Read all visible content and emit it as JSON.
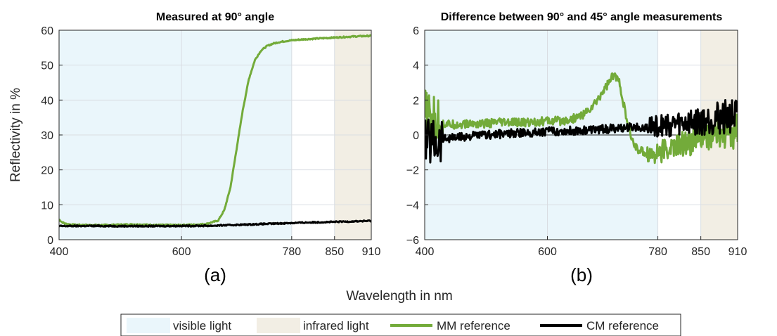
{
  "figure": {
    "ylabel": "Reflectivity in %",
    "xlabel": "Wavelength in nm",
    "legend": [
      {
        "label": "visible light",
        "kind": "patch",
        "color": "#eaf6fb"
      },
      {
        "label": "infrared light",
        "kind": "patch",
        "color": "#f2eee4"
      },
      {
        "label": "MM reference",
        "kind": "line",
        "color": "#73ab3a"
      },
      {
        "label": "CM reference",
        "kind": "line",
        "color": "#000000"
      }
    ]
  },
  "chart_data": [
    {
      "type": "line",
      "title": "Measured at 90° angle",
      "panel_label": "(a)",
      "xlabel": "",
      "ylabel": "Reflectivity in %",
      "xlim": [
        400,
        910
      ],
      "ylim": [
        0,
        60
      ],
      "xticks": [
        400,
        600,
        780,
        850,
        910
      ],
      "yticks": [
        0,
        10,
        20,
        30,
        40,
        50,
        60
      ],
      "grid": true,
      "shaded_regions": [
        {
          "name": "visible light",
          "x": [
            400,
            780
          ],
          "color": "#eaf6fb"
        },
        {
          "name": "infrared light",
          "x": [
            850,
            910
          ],
          "color": "#f2eee4"
        }
      ],
      "series": [
        {
          "name": "MM reference",
          "color": "#73ab3a",
          "x": [
            400,
            405,
            410,
            420,
            440,
            460,
            480,
            500,
            520,
            540,
            560,
            580,
            600,
            620,
            640,
            660,
            670,
            680,
            690,
            700,
            710,
            720,
            730,
            740,
            750,
            760,
            770,
            780,
            800,
            820,
            850,
            880,
            910
          ],
          "y": [
            5.8,
            5.0,
            4.6,
            4.3,
            4.2,
            4.2,
            4.2,
            4.3,
            4.4,
            4.3,
            4.2,
            4.2,
            4.2,
            4.3,
            4.5,
            5.5,
            8.5,
            15,
            26,
            37,
            46,
            51.5,
            54.2,
            55.5,
            56.2,
            56.6,
            56.9,
            57.1,
            57.4,
            57.6,
            57.9,
            58.2,
            58.4
          ]
        },
        {
          "name": "CM reference",
          "color": "#000000",
          "x": [
            400,
            450,
            500,
            550,
            600,
            650,
            700,
            750,
            800,
            850,
            910
          ],
          "y": [
            3.9,
            3.95,
            3.9,
            3.9,
            3.95,
            4.0,
            4.3,
            4.6,
            4.9,
            5.1,
            5.4
          ]
        }
      ]
    },
    {
      "type": "line",
      "title": "Difference between 90° and 45° angle measurements",
      "panel_label": "(b)",
      "xlabel": "",
      "ylabel": "",
      "xlim": [
        400,
        910
      ],
      "ylim": [
        -6,
        6
      ],
      "xticks": [
        400,
        600,
        780,
        850,
        910
      ],
      "yticks": [
        -6,
        -4,
        -2,
        0,
        2,
        4,
        6
      ],
      "grid": true,
      "zero_line": true,
      "shaded_regions": [
        {
          "name": "visible light",
          "x": [
            400,
            780
          ],
          "color": "#eaf6fb"
        },
        {
          "name": "infrared light",
          "x": [
            850,
            910
          ],
          "color": "#f2eee4"
        }
      ],
      "series": [
        {
          "name": "MM reference",
          "color": "#73ab3a",
          "x": [
            400,
            410,
            420,
            440,
            460,
            480,
            500,
            520,
            540,
            560,
            580,
            600,
            620,
            640,
            660,
            670,
            680,
            690,
            700,
            705,
            710,
            715,
            720,
            725,
            730,
            740,
            750,
            760,
            770,
            780,
            800,
            820,
            840,
            860,
            880,
            900,
            910
          ],
          "y": [
            1.2,
            0.9,
            0.7,
            0.6,
            0.6,
            0.65,
            0.65,
            0.7,
            0.7,
            0.7,
            0.75,
            0.8,
            0.8,
            0.9,
            1.2,
            1.5,
            1.9,
            2.5,
            3.0,
            3.3,
            3.4,
            3.2,
            2.6,
            1.6,
            0.7,
            -0.5,
            -0.9,
            -1.0,
            -1.1,
            -1.0,
            -0.8,
            -0.5,
            -0.3,
            -0.1,
            0.0,
            0.1,
            0.2
          ]
        },
        {
          "name": "CM reference",
          "color": "#000000",
          "x": [
            400,
            450,
            500,
            550,
            600,
            650,
            700,
            750,
            780,
            800,
            850,
            880,
            910
          ],
          "y": [
            -0.3,
            -0.15,
            0.0,
            0.1,
            0.2,
            0.25,
            0.35,
            0.45,
            0.5,
            0.6,
            0.8,
            1.0,
            1.1
          ]
        }
      ]
    }
  ]
}
